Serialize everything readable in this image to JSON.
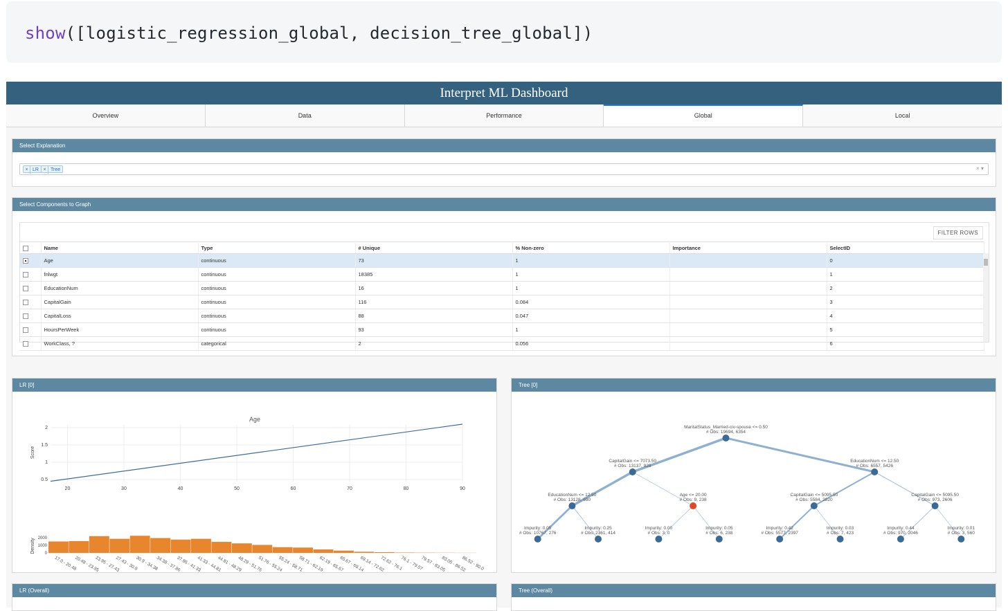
{
  "code": {
    "fn": "show",
    "args": "([logistic_regression_global, decision_tree_global])"
  },
  "dashboard": {
    "title": "Interpret ML Dashboard",
    "tabs": [
      {
        "label": "Overview",
        "active": false
      },
      {
        "label": "Data",
        "active": false
      },
      {
        "label": "Performance",
        "active": false
      },
      {
        "label": "Global",
        "active": true
      },
      {
        "label": "Local",
        "active": false
      }
    ]
  },
  "select_explanation": {
    "title": "Select Explanation",
    "chips": [
      "LR",
      "Tree"
    ],
    "clear_icon": "×",
    "caret_icon": "▾"
  },
  "components": {
    "title": "Select Components to Graph",
    "filter_label": "FILTER ROWS",
    "columns": [
      "Name",
      "Type",
      "# Unique",
      "% Non-zero",
      "Importance",
      "SelectID"
    ],
    "rows": [
      {
        "name": "Age",
        "type": "continuous",
        "unique": "73",
        "nonzero": "1",
        "importance": "",
        "id": "0",
        "selected": true
      },
      {
        "name": "fnlwgt",
        "type": "continuous",
        "unique": "18385",
        "nonzero": "1",
        "importance": "",
        "id": "1",
        "selected": false
      },
      {
        "name": "EducationNum",
        "type": "continuous",
        "unique": "16",
        "nonzero": "1",
        "importance": "",
        "id": "2",
        "selected": false
      },
      {
        "name": "CapitalGain",
        "type": "continuous",
        "unique": "116",
        "nonzero": "0.084",
        "importance": "",
        "id": "3",
        "selected": false
      },
      {
        "name": "CapitalLoss",
        "type": "continuous",
        "unique": "88",
        "nonzero": "0.047",
        "importance": "",
        "id": "4",
        "selected": false
      },
      {
        "name": "HoursPerWeek",
        "type": "continuous",
        "unique": "93",
        "nonzero": "1",
        "importance": "",
        "id": "5",
        "selected": false
      },
      {
        "name": "WorkClass, ?",
        "type": "categorical",
        "unique": "2",
        "nonzero": "0.056",
        "importance": "",
        "id": "6",
        "selected": false
      }
    ]
  },
  "lr_panel": {
    "title": "LR [0]"
  },
  "tree_panel": {
    "title": "Tree [0]"
  },
  "lr_overall": {
    "title": "LR (Overall)"
  },
  "tree_overall": {
    "title": "Tree (Overall)"
  },
  "colors": {
    "line": "#3b6e9c",
    "bar": "#e8862e",
    "node": "#3a6a96",
    "node_hl": "#e0482b",
    "edge": "#8fb1d1"
  },
  "chart_data": [
    {
      "type": "line",
      "title": "Age",
      "xlabel": "",
      "ylabel": "Score",
      "x": [
        17,
        90
      ],
      "y": [
        0.45,
        2.1
      ],
      "xlim": [
        17,
        90
      ],
      "ylim": [
        0.5,
        2
      ],
      "xticks": [
        20,
        30,
        40,
        50,
        60,
        70,
        80,
        90
      ],
      "yticks": [
        0.5,
        1,
        1.5,
        2
      ],
      "grid": true
    },
    {
      "type": "bar",
      "ylabel": "Density",
      "yticks": [
        0,
        1000,
        2000
      ],
      "ylim": [
        0,
        2000
      ],
      "categories": [
        "17.0 - 20.48",
        "20.48 - 23.95",
        "23.95 - 27.43",
        "27.43 - 30.9",
        "30.9 - 34.38",
        "34.38 - 37.86",
        "37.86 - 41.33",
        "41.33 - 44.81",
        "44.81 - 48.29",
        "48.29 - 51.76",
        "51.76 - 55.24",
        "55.24 - 58.71",
        "58.71 - 62.19",
        "62.19 - 65.67",
        "65.67 - 69.14",
        "69.14 - 72.62",
        "72.62 - 76.1",
        "76.1 - 79.57",
        "79.57 - 83.05",
        "83.05 - 86.52",
        "86.52 - 90.0"
      ],
      "values": [
        1500,
        1550,
        2200,
        1850,
        2250,
        1950,
        1750,
        1850,
        1450,
        1250,
        1050,
        750,
        700,
        450,
        300,
        150,
        90,
        50,
        30,
        15,
        10
      ]
    },
    {
      "type": "tree",
      "nodes": [
        {
          "id": "root",
          "label": "MaritalStatus_Married-civ-spouse <= 0.50",
          "obs": "# Obs: 19694, 6354",
          "parent": null,
          "highlight": false
        },
        {
          "id": "n1",
          "label": "CapitalGain <= 7073.50",
          "obs": "# Obs: 13137, 928",
          "parent": "root",
          "highlight": false
        },
        {
          "id": "n2",
          "label": "EducationNum <= 12.50",
          "obs": "# Obs: 6557, 5426",
          "parent": "root",
          "highlight": false
        },
        {
          "id": "n3",
          "label": "EducationNum <= 12.50",
          "obs": "# Obs: 13128, 690",
          "parent": "n1",
          "highlight": false
        },
        {
          "id": "n4",
          "label": "Age <= 20.00",
          "obs": "# Obs: 9, 238",
          "parent": "n1",
          "highlight": true
        },
        {
          "id": "n5",
          "label": "CapitalGain <= 5095.50",
          "obs": "# Obs: 5584, 2820",
          "parent": "n2",
          "highlight": false
        },
        {
          "id": "n6",
          "label": "CapitalGain <= 5095.50",
          "obs": "# Obs: 973, 2606",
          "parent": "n2",
          "highlight": false
        },
        {
          "id": "l1",
          "label": "Impurity: 0.05",
          "obs": "# Obs: 10767, 276",
          "parent": "n3",
          "highlight": false
        },
        {
          "id": "l2",
          "label": "Impurity: 0.25",
          "obs": "# Obs: 2361, 414",
          "parent": "n3",
          "highlight": false
        },
        {
          "id": "l3",
          "label": "Impurity: 0.00",
          "obs": "# Obs: 3, 0",
          "parent": "n4",
          "highlight": false
        },
        {
          "id": "l4",
          "label": "Impurity: 0.05",
          "obs": "# Obs: 6, 238",
          "parent": "n4",
          "highlight": false
        },
        {
          "id": "l5",
          "label": "Impurity: 0.42",
          "obs": "# Obs: 5577, 2397",
          "parent": "n5",
          "highlight": false
        },
        {
          "id": "l6",
          "label": "Impurity: 0.03",
          "obs": "# Obs: 7, 423",
          "parent": "n5",
          "highlight": false
        },
        {
          "id": "l7",
          "label": "Impurity: 0.44",
          "obs": "# Obs: 970, 2046",
          "parent": "n6",
          "highlight": false
        },
        {
          "id": "l8",
          "label": "Impurity: 0.01",
          "obs": "# Obs: 3, 560",
          "parent": "n6",
          "highlight": false
        }
      ]
    }
  ]
}
